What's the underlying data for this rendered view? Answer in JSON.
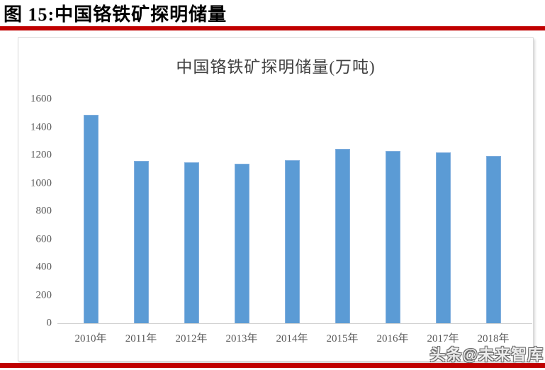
{
  "header": {
    "title": "图 15:中国铬铁矿探明储量"
  },
  "watermark": {
    "text": "头条@未来智库"
  },
  "colors": {
    "accent_red": "#C00000",
    "bar_fill": "#5B9BD5",
    "bar_edge": "#82AFDE",
    "axis_text": "#595959",
    "baseline": "#D2D2D2",
    "card_border": "#D8D8D8"
  },
  "chart_data": {
    "type": "bar",
    "title": "中国铬铁矿探明储量(万吨)",
    "categories": [
      "2010年",
      "2011年",
      "2012年",
      "2013年",
      "2014年",
      "2015年",
      "2016年",
      "2017年",
      "2018年"
    ],
    "values": [
      1490,
      1160,
      1150,
      1140,
      1165,
      1245,
      1230,
      1220,
      1195
    ],
    "xlabel": "",
    "ylabel": "",
    "ylim": [
      0,
      1600
    ],
    "ytick_step": 200,
    "ytick_labels": [
      "0",
      "200",
      "400",
      "600",
      "800",
      "1000",
      "1200",
      "1400",
      "1600"
    ],
    "grid": false,
    "legend": null
  }
}
